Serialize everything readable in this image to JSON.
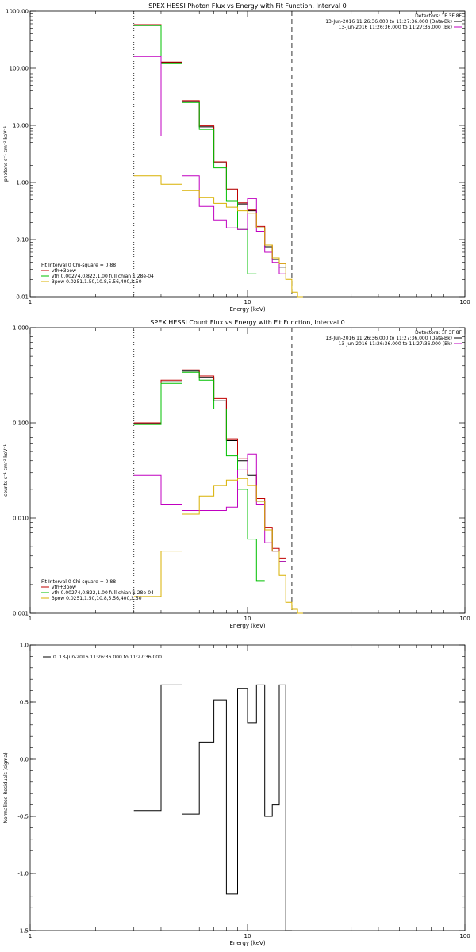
{
  "colors": {
    "black": "#000000",
    "red": "#c00000",
    "green": "#00c000",
    "magenta": "#c000c0",
    "yellow": "#d8b000"
  },
  "chart_data": [
    {
      "type": "line",
      "title": "SPEX HESSI Photon Flux vs Energy with Fit Function, Interval 0",
      "xlabel": "Energy (keV)",
      "ylabel": "photons s⁻¹ cm⁻² keV⁻¹",
      "xscale": "log",
      "yscale": "log",
      "xlim": [
        1,
        100
      ],
      "ylim": [
        0.01,
        1000
      ],
      "x_ticks": [
        "1",
        "10",
        "100"
      ],
      "y_ticks": [
        "0.01",
        "0.10",
        "1.00",
        "10.00",
        "100.00",
        "1000.00"
      ],
      "bin_edges": [
        3,
        4,
        5,
        6,
        7,
        8,
        9,
        10,
        11,
        12,
        13,
        14,
        15,
        16,
        17,
        18
      ],
      "vlines": [
        {
          "x": 3.0,
          "style": "dotted"
        },
        {
          "x": 16.0,
          "style": "dashed"
        }
      ],
      "legend_top_right": {
        "header": "Detectors: 1F 3F 8F",
        "entries": [
          {
            "label": "13-Jun-2016 11:26:36.000 to 11:27:36.000 (Data-Bk)",
            "color": "black"
          },
          {
            "label": "13-Jun-2016 11:26:36.000 to 11:27:36.000 (Bk)",
            "color": "magenta"
          }
        ]
      },
      "legend_bottom_left": {
        "header": "Fit Interval 0   Chi-square = 0.88",
        "entries": [
          {
            "label": "vth+3pow",
            "color": "red"
          },
          {
            "label": "vth 0.00274,0.822,1.00  full chian 1.28e-04",
            "color": "green"
          },
          {
            "label": "3pow 0.0251,1.50,10.8,5.56,400,2.50",
            "color": "yellow"
          }
        ]
      },
      "series": [
        {
          "color": "black",
          "values": [
            560,
            125,
            26,
            9.4,
            2.2,
            0.74,
            0.42,
            0.32,
            0.16,
            0.075,
            0.045,
            0.033,
            null,
            null,
            null
          ]
        },
        {
          "color": "red",
          "values": [
            580,
            128,
            27,
            9.8,
            2.3,
            0.77,
            0.44,
            0.33,
            0.17,
            0.08,
            0.048,
            0.038,
            null,
            null,
            null
          ]
        },
        {
          "color": "green",
          "values": [
            560,
            120,
            25,
            8.5,
            1.8,
            0.48,
            0.15,
            0.025,
            null,
            null,
            null,
            null,
            null,
            null,
            null
          ]
        },
        {
          "color": "magenta",
          "values": [
            160,
            6.5,
            1.3,
            0.38,
            0.22,
            0.16,
            0.15,
            0.52,
            0.14,
            0.06,
            0.04,
            0.025,
            null,
            null,
            null
          ]
        },
        {
          "color": "yellow",
          "values": [
            1.3,
            0.93,
            0.72,
            0.55,
            0.43,
            0.37,
            0.32,
            0.29,
            0.16,
            0.08,
            0.048,
            0.038,
            0.02,
            0.012,
            0.01
          ]
        }
      ]
    },
    {
      "type": "line",
      "title": "SPEX HESSI Count Flux vs Energy with Fit Function, Interval 0",
      "xlabel": "Energy (keV)",
      "ylabel": "counts s⁻¹ cm⁻² keV⁻¹",
      "xscale": "log",
      "yscale": "log",
      "xlim": [
        1,
        100
      ],
      "ylim": [
        0.001,
        1.0
      ],
      "x_ticks": [
        "1",
        "10",
        "100"
      ],
      "y_ticks": [
        "0.001",
        "0.010",
        "0.100",
        "1.000"
      ],
      "bin_edges": [
        3,
        4,
        5,
        6,
        7,
        8,
        9,
        10,
        11,
        12,
        13,
        14,
        15,
        16,
        17,
        18,
        19,
        20
      ],
      "vlines": [
        {
          "x": 3.0,
          "style": "dotted"
        },
        {
          "x": 16.0,
          "style": "dashed"
        }
      ],
      "legend_top_right": {
        "header": "Detectors: 1F 3F 8F",
        "entries": [
          {
            "label": "13-Jun-2016 11:26:36.000 to 11:27:36.000 (Data-Bk)",
            "color": "black"
          },
          {
            "label": "13-Jun-2016 11:26:36.000 to 11:27:36.000 (Bk)",
            "color": "magenta"
          }
        ]
      },
      "legend_bottom_left": {
        "header": "Fit Interval 0   Chi-square = 0.88",
        "entries": [
          {
            "label": "vth+3pow",
            "color": "red"
          },
          {
            "label": "vth 0.00274,0.822,1.00  full chian 1.28e-04",
            "color": "green"
          },
          {
            "label": "3pow 0.0251,1.50,10.8,5.56,400,2.50",
            "color": "yellow"
          }
        ]
      },
      "series": [
        {
          "color": "black",
          "values": [
            0.098,
            0.27,
            0.35,
            0.3,
            0.17,
            0.065,
            0.04,
            0.028,
            0.015,
            0.0075,
            0.0045,
            0.0035,
            null,
            null,
            null,
            null,
            null
          ]
        },
        {
          "color": "red",
          "values": [
            0.1,
            0.28,
            0.36,
            0.31,
            0.18,
            0.068,
            0.042,
            0.029,
            0.016,
            0.008,
            0.0048,
            0.0038,
            null,
            null,
            null,
            null,
            null
          ]
        },
        {
          "color": "green",
          "values": [
            0.096,
            0.26,
            0.34,
            0.28,
            0.14,
            0.045,
            0.02,
            0.006,
            0.0022,
            null,
            null,
            null,
            null,
            null,
            null,
            null,
            null
          ]
        },
        {
          "color": "magenta",
          "values": [
            0.028,
            0.014,
            0.012,
            0.012,
            0.012,
            0.013,
            0.032,
            0.047,
            0.014,
            0.0055,
            0.0045,
            0.0035,
            null,
            null,
            null,
            null,
            null
          ]
        },
        {
          "color": "yellow",
          "values": [
            0.0015,
            0.0045,
            0.011,
            0.017,
            0.022,
            0.025,
            0.026,
            0.022,
            0.015,
            0.0075,
            0.0045,
            0.0025,
            0.0013,
            0.0011,
            0.001,
            null,
            null
          ]
        }
      ]
    },
    {
      "type": "line",
      "title": "",
      "xlabel": "Energy (keV)",
      "ylabel": "Normalized Residuals (sigma)",
      "xscale": "log",
      "yscale": "linear",
      "xlim": [
        1,
        100
      ],
      "ylim": [
        -1.5,
        1.0
      ],
      "x_ticks": [
        "1",
        "10",
        "100"
      ],
      "y_ticks": [
        "-1.5",
        "-1.0",
        "-0.5",
        "0.0",
        "0.5",
        "1.0"
      ],
      "bin_edges": [
        3,
        4,
        5,
        6,
        7,
        8,
        9,
        10,
        11,
        12,
        13,
        14,
        15,
        16,
        17
      ],
      "legend_top_left": {
        "entries": [
          {
            "label": "0. 13-Jun-2016 11:26:36.000 to 11:27:36.000",
            "color": "black"
          }
        ]
      },
      "series": [
        {
          "color": "black",
          "values": [
            -0.45,
            0.65,
            -0.48,
            0.15,
            0.52,
            -1.18,
            0.62,
            0.32,
            0.65,
            -0.5,
            -0.4,
            0.65,
            -1.5,
            null
          ]
        }
      ]
    }
  ]
}
